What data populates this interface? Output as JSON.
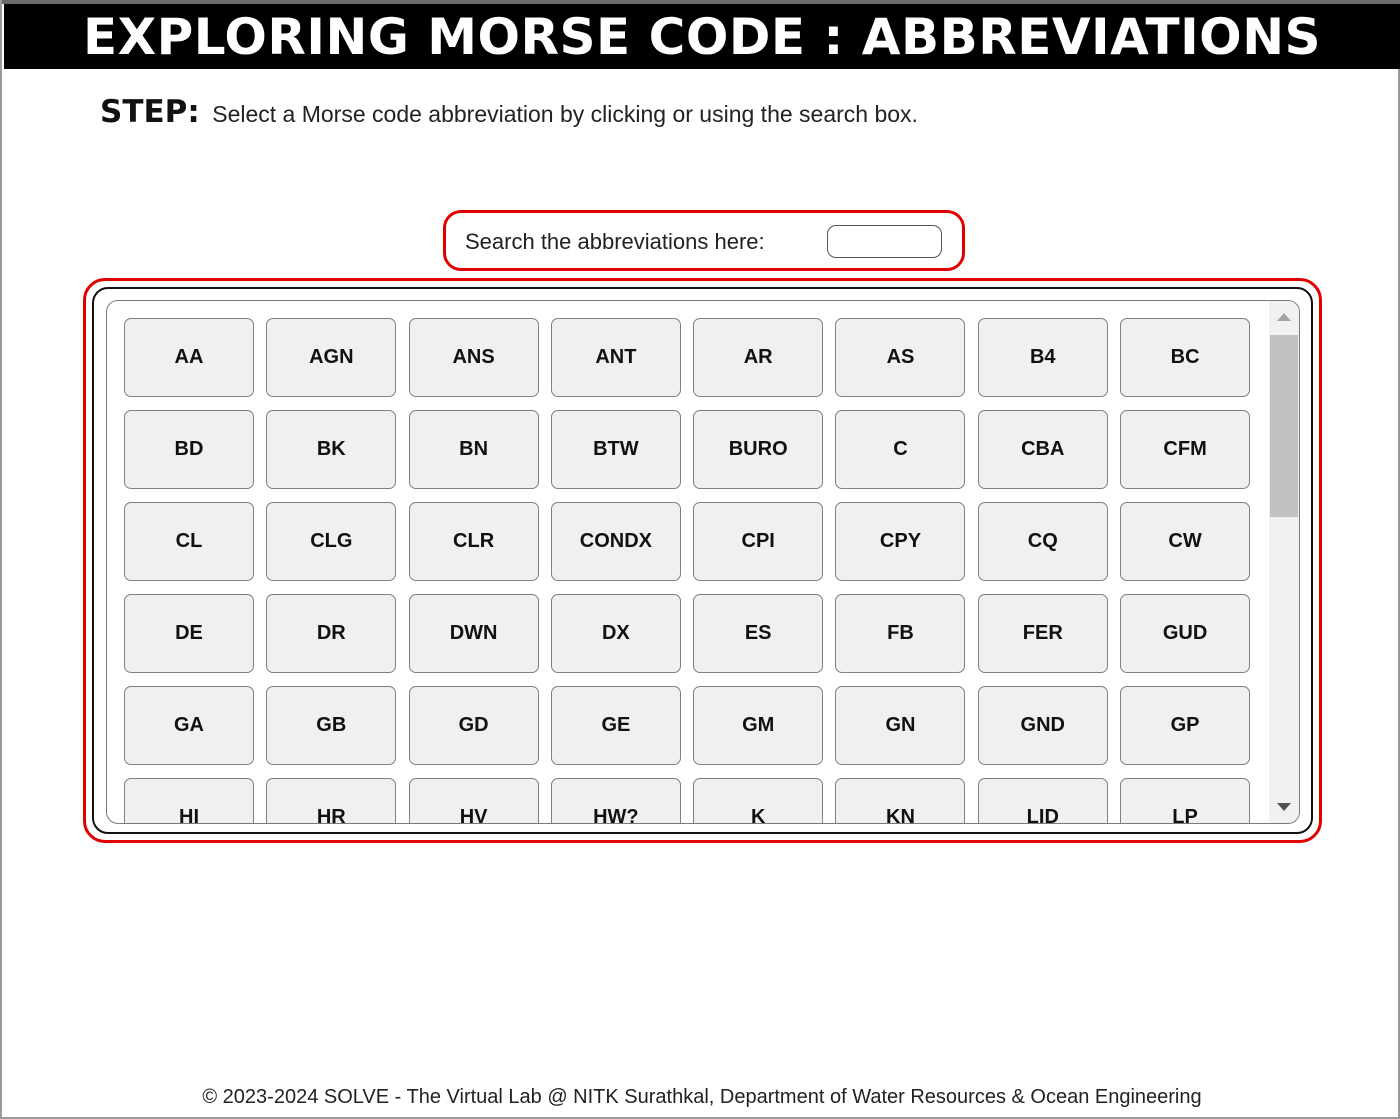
{
  "header": {
    "title": "EXPLORING MORSE CODE : ABBREVIATIONS"
  },
  "step": {
    "label": "STEP:",
    "instruction": "Select a Morse code abbreviation by clicking or using the search box."
  },
  "search": {
    "label": "Search the abbreviations here:",
    "value": ""
  },
  "abbreviations": [
    "AA",
    "AGN",
    "ANS",
    "ANT",
    "AR",
    "AS",
    "B4",
    "BC",
    "BD",
    "BK",
    "BN",
    "BTW",
    "BURO",
    "C",
    "CBA",
    "CFM",
    "CL",
    "CLG",
    "CLR",
    "CONDX",
    "CPI",
    "CPY",
    "CQ",
    "CW",
    "DE",
    "DR",
    "DWN",
    "DX",
    "ES",
    "FB",
    "FER",
    "GUD",
    "GA",
    "GB",
    "GD",
    "GE",
    "GM",
    "GN",
    "GND",
    "GP",
    "HI",
    "HR",
    "HV",
    "HW?",
    "K",
    "KN",
    "LID",
    "LP"
  ],
  "colors": {
    "accent_border": "#e00000",
    "title_bg": "#000000",
    "title_fg": "#ffffff",
    "button_bg": "#f0f0f0"
  },
  "icons": {
    "scroll_up": "scroll-up-arrow-icon",
    "scroll_down": "scroll-down-arrow-icon"
  },
  "footer": {
    "text": "© 2023-2024 SOLVE - The Virtual Lab @ NITK Surathkal, Department of Water Resources & Ocean Engineering"
  }
}
